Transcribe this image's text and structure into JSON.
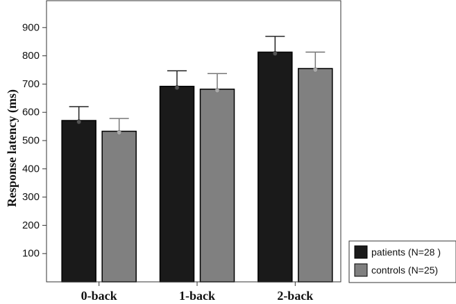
{
  "chart_data": {
    "type": "bar",
    "ylabel": "Response latency (ms)",
    "xlabel": "",
    "categories": [
      "0-back",
      "1-back",
      "2-back"
    ],
    "ylim": [
      0,
      1000
    ],
    "yticks": [
      100,
      200,
      300,
      400,
      500,
      600,
      700,
      800,
      900
    ],
    "series": [
      {
        "name": "patients (N=28 )",
        "values": [
          571,
          692,
          813
        ],
        "error_upper": [
          620,
          747,
          869
        ],
        "color": "#1a1a1a",
        "marker_color": "#555555"
      },
      {
        "name": "controls (N=25)",
        "values": [
          533,
          682,
          755
        ],
        "error_upper": [
          578,
          737,
          813
        ],
        "color": "#808080",
        "marker_color": "#aaaaaa"
      }
    ],
    "legend_position": "bottom-right",
    "grid": false
  }
}
